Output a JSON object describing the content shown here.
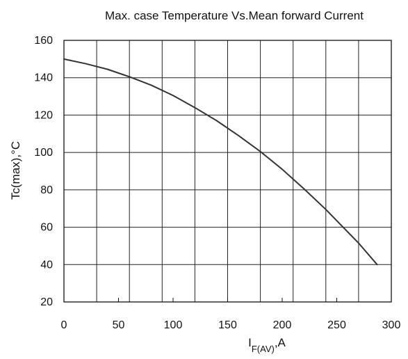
{
  "chart_data": {
    "type": "line",
    "title": "Max. case Temperature Vs.Mean forward Current",
    "xlabel": {
      "main": "I",
      "subscript": "F(AV)",
      "suffix": ",A"
    },
    "ylabel": "Tc(max),°C",
    "xlim": [
      0,
      300
    ],
    "ylim": [
      20,
      160
    ],
    "xticks": [
      0,
      50,
      100,
      150,
      200,
      250,
      300
    ],
    "xtick_labels": [
      "0",
      "50",
      "100",
      "150",
      "200",
      "250",
      "300"
    ],
    "yticks": [
      20,
      40,
      60,
      80,
      100,
      120,
      140,
      160
    ],
    "ytick_labels": [
      "20",
      "40",
      "60",
      "80",
      "100",
      "120",
      "140",
      "160"
    ],
    "x_grid_step": 30,
    "y_grid_step": 20,
    "grid": true,
    "series": [
      {
        "color": "#333333",
        "x": [
          0,
          20,
          40,
          60,
          80,
          100,
          120,
          140,
          160,
          180,
          200,
          220,
          240,
          260,
          270,
          287
        ],
        "y": [
          150,
          147.5,
          144.5,
          140.5,
          136,
          130.5,
          124,
          117,
          109,
          100.5,
          91,
          80.5,
          69.5,
          57.5,
          51.5,
          40
        ]
      }
    ]
  }
}
